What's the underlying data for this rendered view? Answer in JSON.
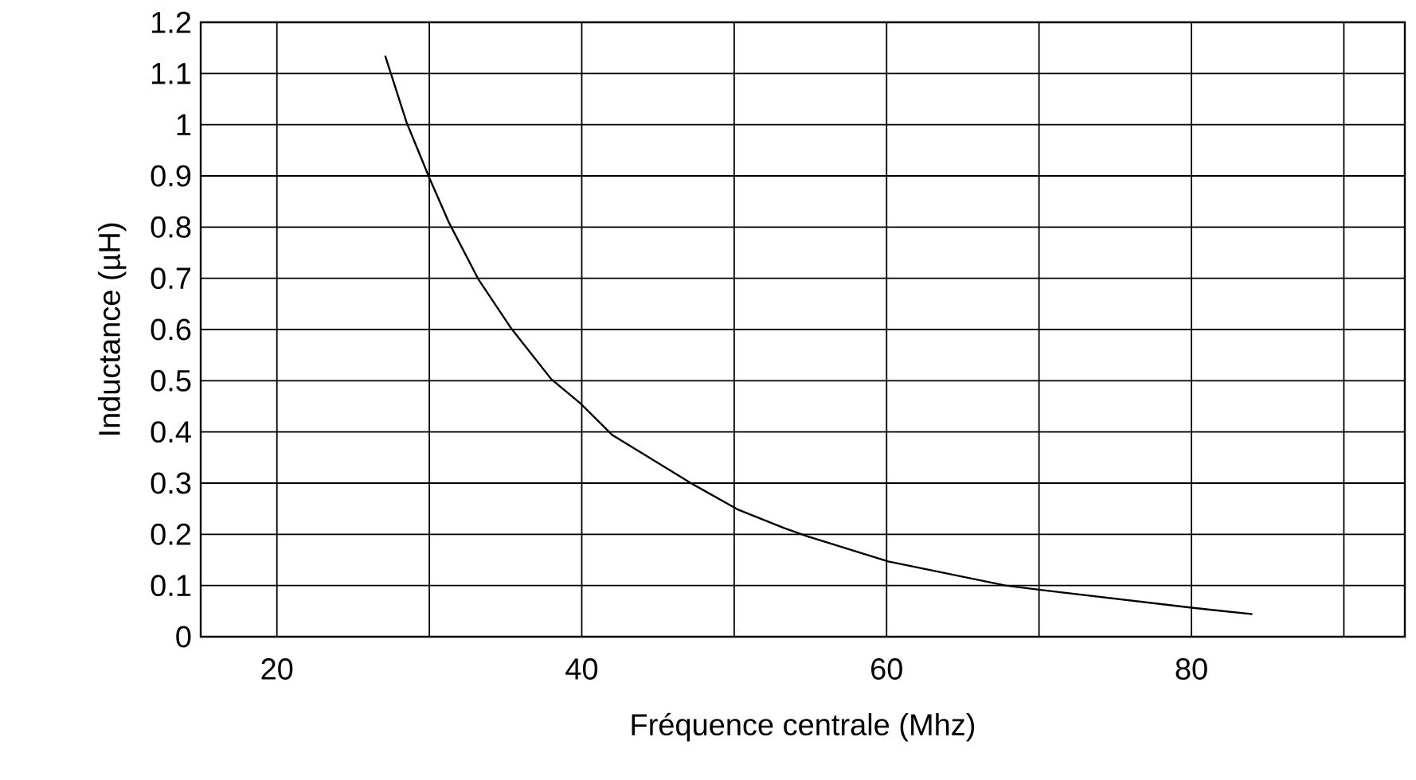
{
  "chart_data": {
    "type": "line",
    "xlabel": "Fréquence centrale (Mhz)",
    "ylabel": "Inductance (µH)",
    "xlim": [
      15,
      94
    ],
    "ylim": [
      0,
      1.2
    ],
    "xticks": [
      20,
      {
        "value": 30,
        "label": null
      },
      40,
      {
        "value": 50,
        "label": null
      },
      60,
      {
        "value": 70,
        "label": null
      },
      80,
      {
        "value": 90,
        "label": null
      }
    ],
    "yticks": [
      0,
      0.1,
      0.2,
      0.3,
      0.4,
      0.5,
      0.6,
      0.7,
      0.8,
      0.9,
      1,
      1.1,
      1.2
    ],
    "grid": true,
    "marker": "none",
    "line_style": "solid",
    "series": [
      {
        "color": "#000000",
        "x": [
          27.1,
          28.5,
          30.0,
          31.3,
          33.2,
          35.4,
          38.0,
          39.9,
          42.0,
          47.1,
          50.2,
          53.3,
          54.7,
          60.1,
          67.8,
          70.2,
          79.9,
          84.0
        ],
        "values": [
          1.135,
          1.005,
          0.896,
          0.808,
          0.699,
          0.601,
          0.503,
          0.456,
          0.394,
          0.301,
          0.249,
          0.212,
          0.197,
          0.147,
          0.1,
          0.091,
          0.057,
          0.044
        ]
      }
    ]
  }
}
